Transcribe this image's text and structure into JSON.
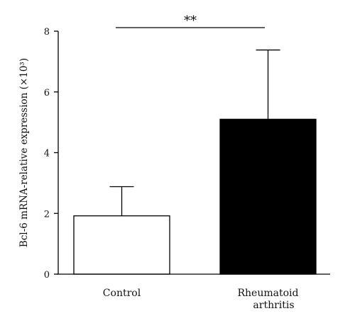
{
  "chart_data": {
    "type": "bar",
    "title": "",
    "xlabel": "",
    "ylabel": "Bcl-6 mRNA-relative expression (×10³)",
    "ylim": [
      0,
      8
    ],
    "yticks": [
      "0",
      "2",
      "4",
      "6",
      "8"
    ],
    "categories": [
      {
        "lines": [
          "Control"
        ]
      },
      {
        "lines": [
          "Rheumatoid",
          "arthritis"
        ]
      }
    ],
    "values": [
      1.92,
      5.1
    ],
    "error_upper": [
      2.88,
      7.38
    ],
    "bar_colors": [
      "#ffffff",
      "#000000"
    ],
    "significance": {
      "label": "**",
      "between": [
        0,
        1
      ],
      "y": 8.0
    },
    "grid": false,
    "legend": "none"
  }
}
